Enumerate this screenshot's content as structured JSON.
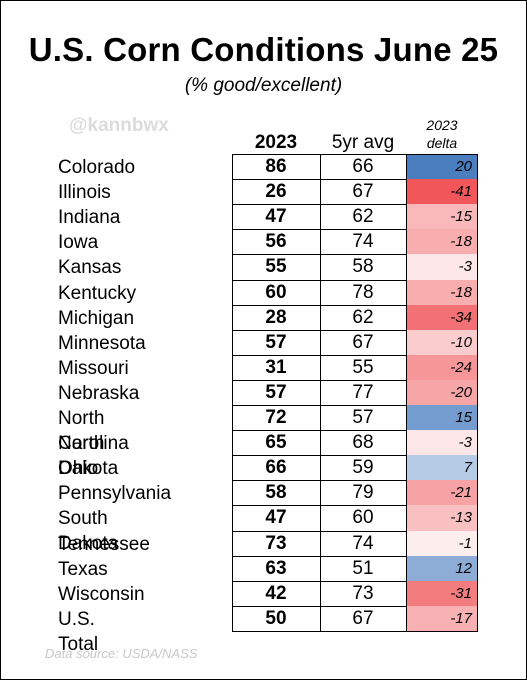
{
  "title": "U.S. Corn Conditions June 25",
  "subtitle": "(% good/excellent)",
  "watermark": "@kannbwx",
  "source": "Data source: USDA/NASS",
  "chart_data": {
    "type": "table",
    "columns": [
      "2023",
      "5yr avg",
      "2023 delta"
    ],
    "delta_header_line1": "2023",
    "delta_header_line2": "delta",
    "colors": {
      "positive": "#4a7ebf",
      "negative": "#f0565a",
      "neutral": "#ffffff"
    },
    "rows": [
      {
        "state": "Colorado",
        "y2023": 86,
        "avg5": 66,
        "delta": 20
      },
      {
        "state": "Illinois",
        "y2023": 26,
        "avg5": 67,
        "delta": -41
      },
      {
        "state": "Indiana",
        "y2023": 47,
        "avg5": 62,
        "delta": -15
      },
      {
        "state": "Iowa",
        "y2023": 56,
        "avg5": 74,
        "delta": -18
      },
      {
        "state": "Kansas",
        "y2023": 55,
        "avg5": 58,
        "delta": -3
      },
      {
        "state": "Kentucky",
        "y2023": 60,
        "avg5": 78,
        "delta": -18
      },
      {
        "state": "Michigan",
        "y2023": 28,
        "avg5": 62,
        "delta": -34
      },
      {
        "state": "Minnesota",
        "y2023": 57,
        "avg5": 67,
        "delta": -10
      },
      {
        "state": "Missouri",
        "y2023": 31,
        "avg5": 55,
        "delta": -24
      },
      {
        "state": "Nebraska",
        "y2023": 57,
        "avg5": 77,
        "delta": -20
      },
      {
        "state": "North Carolina",
        "y2023": 72,
        "avg5": 57,
        "delta": 15
      },
      {
        "state": "North Dakota",
        "y2023": 65,
        "avg5": 68,
        "delta": -3
      },
      {
        "state": "Ohio",
        "y2023": 66,
        "avg5": 59,
        "delta": 7
      },
      {
        "state": "Pennsylvania",
        "y2023": 58,
        "avg5": 79,
        "delta": -21
      },
      {
        "state": "South Dakota",
        "y2023": 47,
        "avg5": 60,
        "delta": -13
      },
      {
        "state": "Tennessee",
        "y2023": 73,
        "avg5": 74,
        "delta": -1
      },
      {
        "state": "Texas",
        "y2023": 63,
        "avg5": 51,
        "delta": 12
      },
      {
        "state": "Wisconsin",
        "y2023": 42,
        "avg5": 73,
        "delta": -31
      },
      {
        "state": "U.S. Total",
        "y2023": 50,
        "avg5": 67,
        "delta": -17
      }
    ]
  }
}
